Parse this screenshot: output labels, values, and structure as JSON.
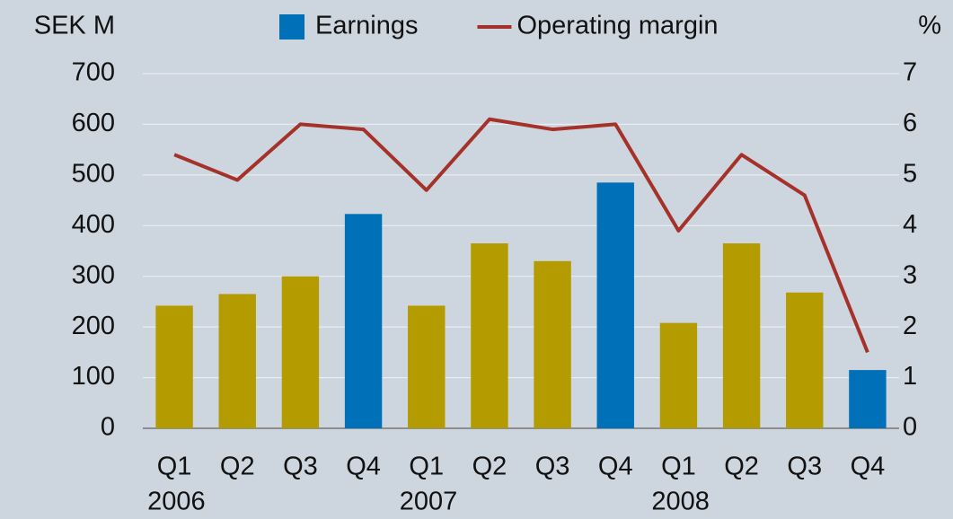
{
  "chart_data": {
    "type": "bar",
    "background": "#cdd6de",
    "ylabel": "SEK M",
    "y2label": "%",
    "categories": [
      "Q1",
      "Q2",
      "Q3",
      "Q4",
      "Q1",
      "Q2",
      "Q3",
      "Q4",
      "Q1",
      "Q2",
      "Q3",
      "Q4"
    ],
    "year_labels": [
      "2006",
      null,
      null,
      null,
      "2007",
      null,
      null,
      null,
      "2008",
      null,
      null,
      null
    ],
    "series": [
      {
        "name": "Earnings",
        "type": "bar",
        "color": "#0070b8",
        "colors": [
          "#b39b00",
          "#b39b00",
          "#b39b00",
          "#0070b8",
          "#b39b00",
          "#b39b00",
          "#b39b00",
          "#0070b8",
          "#b39b00",
          "#b39b00",
          "#b39b00",
          "#0070b8"
        ],
        "values": [
          242,
          265,
          300,
          423,
          242,
          365,
          330,
          485,
          208,
          365,
          268,
          115
        ]
      },
      {
        "name": "Operating margin",
        "type": "line",
        "axis": "y2",
        "color": "#a5322a",
        "values": [
          5.4,
          4.9,
          6.0,
          5.9,
          4.7,
          6.1,
          5.9,
          6.0,
          3.9,
          5.4,
          4.6,
          1.5
        ]
      }
    ],
    "ylim": [
      0,
      700
    ],
    "yticks": [
      0,
      100,
      200,
      300,
      400,
      500,
      600,
      700
    ],
    "y2lim": [
      0,
      7
    ],
    "y2ticks": [
      0,
      1,
      2,
      3,
      4,
      5,
      6,
      7
    ],
    "grid": true
  }
}
